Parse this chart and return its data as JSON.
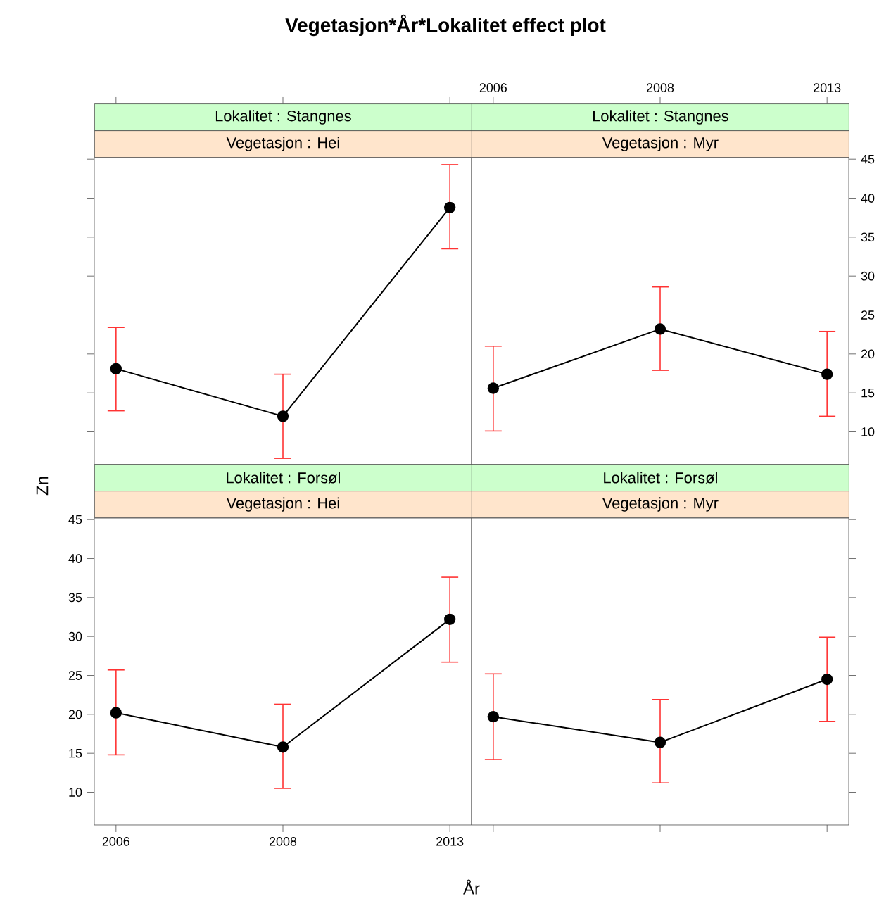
{
  "chart_data": [
    {
      "type": "line",
      "title": "Lokalitet : Stangnes",
      "subtitle": "Vegetasjon : Hei",
      "annotations": [
        "Vegetasjon*År*Lokalitet effect plot"
      ],
      "categories": [
        "2006",
        "2008",
        "2013"
      ],
      "ylim": [
        5.8,
        45.2
      ],
      "yticks": [
        10,
        15,
        20,
        25,
        30,
        35,
        40,
        45
      ],
      "tick_labels": false,
      "marker": "circle",
      "line_style": "solid",
      "grid": false,
      "series": [
        {
          "color": "#000000",
          "values": [
            18.1,
            12.0,
            38.8
          ],
          "errors": [
            [
              12.7,
              23.4
            ],
            [
              6.6,
              17.4
            ],
            [
              33.5,
              44.3
            ]
          ]
        }
      ]
    },
    {
      "type": "line",
      "title": "Lokalitet : Stangnes",
      "subtitle": "Vegetasjon : Myr",
      "categories": [
        "2006",
        "2008",
        "2013"
      ],
      "ylim": [
        5.8,
        45.2
      ],
      "yticks": [
        10,
        15,
        20,
        25,
        30,
        35,
        40,
        45
      ],
      "marker": "circle",
      "line_style": "solid",
      "grid": false,
      "series": [
        {
          "color": "#000000",
          "values": [
            15.6,
            23.2,
            17.4
          ],
          "errors": [
            [
              10.1,
              21.0
            ],
            [
              17.9,
              28.6
            ],
            [
              12.0,
              22.9
            ]
          ]
        }
      ]
    },
    {
      "type": "line",
      "title": "Lokalitet : Forsøl",
      "subtitle": "Vegetasjon : Hei",
      "xlabel": "År",
      "ylabel": "Zn",
      "categories": [
        "2006",
        "2008",
        "2013"
      ],
      "ylim": [
        5.8,
        45.2
      ],
      "yticks": [
        10,
        15,
        20,
        25,
        30,
        35,
        40,
        45
      ],
      "marker": "circle",
      "line_style": "solid",
      "grid": false,
      "series": [
        {
          "color": "#000000",
          "values": [
            20.2,
            15.8,
            32.2
          ],
          "errors": [
            [
              14.8,
              25.7
            ],
            [
              10.5,
              21.3
            ],
            [
              26.7,
              37.6
            ]
          ]
        }
      ]
    },
    {
      "type": "line",
      "title": "Lokalitet : Forsøl",
      "subtitle": "Vegetasjon : Myr",
      "categories": [
        "2006",
        "2008",
        "2013"
      ],
      "ylim": [
        5.8,
        45.2
      ],
      "yticks": [
        10,
        15,
        20,
        25,
        30,
        35,
        40,
        45
      ],
      "tick_labels": false,
      "marker": "circle",
      "line_style": "solid",
      "grid": false,
      "series": [
        {
          "color": "#000000",
          "values": [
            19.7,
            16.4,
            24.5
          ],
          "errors": [
            [
              14.2,
              25.2
            ],
            [
              11.2,
              21.9
            ],
            [
              19.1,
              29.9
            ]
          ]
        }
      ]
    }
  ]
}
